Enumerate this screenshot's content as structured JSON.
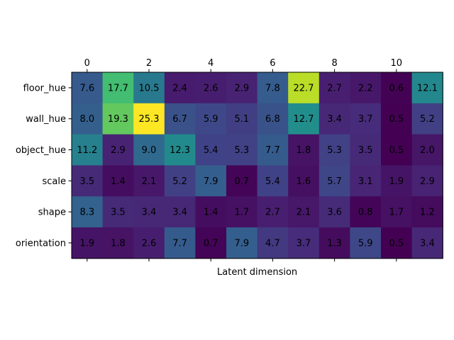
{
  "chart_data": {
    "type": "heatmap",
    "title": "",
    "xlabel": "Latent dimension",
    "ylabel": "",
    "x_ticks": [
      0,
      2,
      4,
      6,
      8,
      10
    ],
    "x_tick_labels": [
      "0",
      "2",
      "4",
      "6",
      "8",
      "10"
    ],
    "x_axis_position": "top",
    "columns": [
      0,
      1,
      2,
      3,
      4,
      5,
      6,
      7,
      8,
      9,
      10,
      11
    ],
    "rows": [
      "floor_hue",
      "wall_hue",
      "object_hue",
      "scale",
      "shape",
      "orientation"
    ],
    "values": [
      [
        7.6,
        17.7,
        10.5,
        2.4,
        2.6,
        2.9,
        7.8,
        22.7,
        2.7,
        2.2,
        0.6,
        12.1
      ],
      [
        8.0,
        19.3,
        25.3,
        6.7,
        5.9,
        5.1,
        6.8,
        12.7,
        3.4,
        3.7,
        0.5,
        5.2
      ],
      [
        11.2,
        2.9,
        9.0,
        12.3,
        5.4,
        5.3,
        7.7,
        1.8,
        5.3,
        3.5,
        0.5,
        2.0
      ],
      [
        3.5,
        1.4,
        2.1,
        5.2,
        7.9,
        0.7,
        5.4,
        1.6,
        5.7,
        3.1,
        1.9,
        2.9
      ],
      [
        8.3,
        3.5,
        3.4,
        3.4,
        1.4,
        1.7,
        2.7,
        2.1,
        3.6,
        0.8,
        1.7,
        1.2
      ],
      [
        1.9,
        1.8,
        2.6,
        7.7,
        0.7,
        7.9,
        4.7,
        3.7,
        1.3,
        5.9,
        0.5,
        3.4
      ]
    ],
    "colormap": "viridis",
    "value_range": [
      0.5,
      25.3
    ],
    "cell_labels": true,
    "grid": false
  }
}
